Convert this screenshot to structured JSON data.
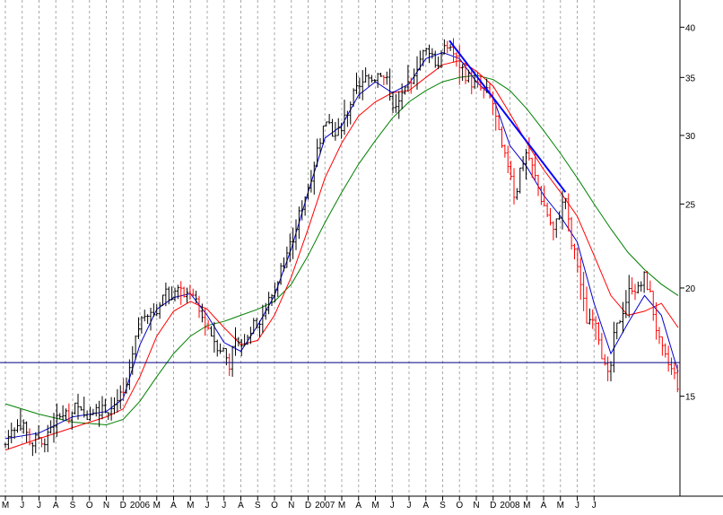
{
  "chart_data": {
    "type": "line",
    "title": "",
    "xlabel": "",
    "ylabel": "",
    "y_scale": "log",
    "ylim": [
      11.5,
      43
    ],
    "y_ticks": [
      15,
      20,
      25,
      30,
      35,
      40
    ],
    "x_tick_labels": [
      "M",
      "J",
      "J",
      "A",
      "S",
      "O",
      "N",
      "D",
      "2006",
      "M",
      "A",
      "M",
      "J",
      "J",
      "A",
      "S",
      "O",
      "N",
      "D",
      "2007",
      "M",
      "A",
      "M",
      "J",
      "J",
      "A",
      "S",
      "O",
      "N",
      "D",
      "2008",
      "M",
      "A",
      "M",
      "J",
      "J"
    ],
    "grid": "vertical dashed at each month",
    "legend": "none",
    "colors": {
      "price_bars": "#000000",
      "down_bars": "#ff0000",
      "ma_short": "#0000cc",
      "ma_medium": "#ff0000",
      "ma_long": "#008000",
      "trendline": "#0000ff",
      "support_line": "#000080"
    },
    "price_path": [
      [
        0,
        13.2
      ],
      [
        0.4,
        13.8
      ],
      [
        0.8,
        14.1
      ],
      [
        1.2,
        13.6
      ],
      [
        1.6,
        13.2
      ],
      [
        2,
        13.5
      ],
      [
        2.3,
        13.0
      ],
      [
        2.6,
        13.9
      ],
      [
        3,
        14.0
      ],
      [
        3.4,
        14.3
      ],
      [
        3.8,
        14.1
      ],
      [
        4.2,
        14.6
      ],
      [
        4.6,
        14.2
      ],
      [
        5,
        14.4
      ],
      [
        5.4,
        14.6
      ],
      [
        5.8,
        14.4
      ],
      [
        6.2,
        14.5
      ],
      [
        6.6,
        14.8
      ],
      [
        7,
        15.0
      ],
      [
        7.3,
        15.6
      ],
      [
        7.6,
        16.8
      ],
      [
        7.8,
        17.6
      ],
      [
        8,
        18.2
      ],
      [
        8.3,
        18.7
      ],
      [
        8.6,
        19.0
      ],
      [
        8.9,
        18.4
      ],
      [
        9.2,
        19.4
      ],
      [
        9.5,
        19.8
      ],
      [
        9.8,
        19.6
      ],
      [
        10.2,
        19.9
      ],
      [
        10.6,
        19.6
      ],
      [
        11,
        19.8
      ],
      [
        11.3,
        19.2
      ],
      [
        11.6,
        18.6
      ],
      [
        12,
        18.1
      ],
      [
        12.3,
        17.6
      ],
      [
        12.6,
        17.2
      ],
      [
        13,
        16.9
      ],
      [
        13.3,
        16.3
      ],
      [
        13.6,
        17.2
      ],
      [
        14,
        17.0
      ],
      [
        14.3,
        17.6
      ],
      [
        14.6,
        17.9
      ],
      [
        15,
        18.3
      ],
      [
        15.3,
        18.6
      ],
      [
        15.6,
        19.2
      ],
      [
        16,
        19.9
      ],
      [
        16.3,
        20.8
      ],
      [
        16.6,
        21.6
      ],
      [
        17,
        22.6
      ],
      [
        17.3,
        23.6
      ],
      [
        17.6,
        24.8
      ],
      [
        18,
        26.2
      ],
      [
        18.3,
        27.6
      ],
      [
        18.6,
        29.2
      ],
      [
        18.9,
        30.6
      ],
      [
        19.2,
        31.8
      ],
      [
        19.5,
        29.5
      ],
      [
        19.8,
        30.2
      ],
      [
        20.2,
        31.5
      ],
      [
        20.6,
        33.0
      ],
      [
        21,
        34.2
      ],
      [
        21.3,
        35.0
      ],
      [
        21.6,
        34.6
      ],
      [
        22,
        35.2
      ],
      [
        22.4,
        35.6
      ],
      [
        22.8,
        34.0
      ],
      [
        23.2,
        32.0
      ],
      [
        23.6,
        33.4
      ],
      [
        24,
        34.6
      ],
      [
        24.4,
        36.0
      ],
      [
        24.8,
        37.2
      ],
      [
        25.2,
        37.8
      ],
      [
        25.6,
        36.5
      ],
      [
        26,
        37.2
      ],
      [
        26.4,
        38.3
      ],
      [
        26.7,
        37.0
      ],
      [
        27,
        36.2
      ],
      [
        27.4,
        35.2
      ],
      [
        27.8,
        34.4
      ],
      [
        28.2,
        34.0
      ],
      [
        28.6,
        33.6
      ],
      [
        29,
        32.6
      ],
      [
        29.3,
        30.2
      ],
      [
        29.6,
        28.4
      ],
      [
        30,
        27.6
      ],
      [
        30.3,
        25.2
      ],
      [
        30.6,
        27.4
      ],
      [
        31,
        28.8
      ],
      [
        31.4,
        27.2
      ],
      [
        31.8,
        25.6
      ],
      [
        32.2,
        24.4
      ],
      [
        32.6,
        23.2
      ],
      [
        33,
        24.6
      ],
      [
        33.3,
        25.4
      ],
      [
        33.6,
        22.6
      ],
      [
        34,
        21.4
      ],
      [
        34.3,
        19.6
      ],
      [
        34.6,
        18.2
      ],
      [
        35,
        18.8
      ],
      [
        35.3,
        17.6
      ],
      [
        35.6,
        16.2
      ],
      [
        35.9,
        15.6
      ],
      [
        36.2,
        17.6
      ],
      [
        36.6,
        18.6
      ],
      [
        37,
        19.6
      ],
      [
        37.3,
        20.2
      ],
      [
        37.6,
        19.8
      ],
      [
        38,
        20.6
      ],
      [
        38.3,
        19.8
      ],
      [
        38.6,
        18.4
      ],
      [
        38.9,
        17.2
      ],
      [
        39.2,
        16.6
      ],
      [
        39.5,
        16.2
      ],
      [
        39.8,
        15.8
      ],
      [
        40,
        15.4
      ]
    ],
    "ma_short": [
      [
        0,
        13.4
      ],
      [
        2,
        13.6
      ],
      [
        4,
        14.2
      ],
      [
        6,
        14.4
      ],
      [
        7,
        14.9
      ],
      [
        8,
        17.2
      ],
      [
        9,
        18.9
      ],
      [
        10,
        19.5
      ],
      [
        11,
        19.7
      ],
      [
        12,
        18.6
      ],
      [
        13,
        17.3
      ],
      [
        14,
        16.9
      ],
      [
        15,
        18.1
      ],
      [
        16,
        19.6
      ],
      [
        17,
        22.2
      ],
      [
        18,
        25.8
      ],
      [
        19,
        29.8
      ],
      [
        20,
        30.8
      ],
      [
        21,
        33.4
      ],
      [
        22,
        34.6
      ],
      [
        23,
        33.6
      ],
      [
        24,
        34.4
      ],
      [
        25,
        36.8
      ],
      [
        26,
        37.4
      ],
      [
        27,
        36.8
      ],
      [
        28,
        34.6
      ],
      [
        29,
        33.2
      ],
      [
        30,
        29.2
      ],
      [
        31,
        27.6
      ],
      [
        32,
        25.6
      ],
      [
        33,
        24.2
      ],
      [
        34,
        22.6
      ],
      [
        35,
        19.2
      ],
      [
        36,
        16.8
      ],
      [
        37,
        18.2
      ],
      [
        38,
        19.6
      ],
      [
        39,
        18.6
      ],
      [
        40,
        16.0
      ]
    ],
    "ma_medium": [
      [
        0,
        13.0
      ],
      [
        2,
        13.4
      ],
      [
        4,
        13.8
      ],
      [
        6,
        14.2
      ],
      [
        7,
        14.5
      ],
      [
        8,
        15.8
      ],
      [
        9,
        17.6
      ],
      [
        10,
        18.8
      ],
      [
        11,
        19.3
      ],
      [
        12,
        18.9
      ],
      [
        13,
        18.0
      ],
      [
        14,
        17.2
      ],
      [
        15,
        17.4
      ],
      [
        16,
        18.6
      ],
      [
        17,
        20.6
      ],
      [
        18,
        23.4
      ],
      [
        19,
        26.8
      ],
      [
        20,
        29.4
      ],
      [
        21,
        31.6
      ],
      [
        22,
        32.8
      ],
      [
        23,
        33.6
      ],
      [
        24,
        33.8
      ],
      [
        25,
        35.0
      ],
      [
        26,
        36.2
      ],
      [
        27,
        36.6
      ],
      [
        28,
        35.6
      ],
      [
        29,
        34.2
      ],
      [
        30,
        31.8
      ],
      [
        31,
        29.4
      ],
      [
        32,
        27.4
      ],
      [
        33,
        25.8
      ],
      [
        34,
        24.2
      ],
      [
        35,
        21.8
      ],
      [
        36,
        19.6
      ],
      [
        37,
        18.6
      ],
      [
        38,
        18.8
      ],
      [
        39,
        19.2
      ],
      [
        40,
        18.0
      ]
    ],
    "ma_long": [
      [
        0,
        14.7
      ],
      [
        2,
        14.3
      ],
      [
        4,
        14.0
      ],
      [
        6,
        13.9
      ],
      [
        7,
        14.1
      ],
      [
        8,
        14.8
      ],
      [
        9,
        15.8
      ],
      [
        10,
        16.8
      ],
      [
        11,
        17.6
      ],
      [
        12,
        18.1
      ],
      [
        13,
        18.3
      ],
      [
        14,
        18.6
      ],
      [
        15,
        18.9
      ],
      [
        16,
        19.3
      ],
      [
        17,
        20.2
      ],
      [
        18,
        21.8
      ],
      [
        19,
        23.8
      ],
      [
        20,
        25.8
      ],
      [
        21,
        27.8
      ],
      [
        22,
        29.6
      ],
      [
        23,
        31.4
      ],
      [
        24,
        32.8
      ],
      [
        25,
        33.8
      ],
      [
        26,
        34.6
      ],
      [
        27,
        35.0
      ],
      [
        28,
        35.2
      ],
      [
        29,
        34.8
      ],
      [
        30,
        33.8
      ],
      [
        31,
        32.2
      ],
      [
        32,
        30.4
      ],
      [
        33,
        28.6
      ],
      [
        34,
        26.8
      ],
      [
        35,
        25.0
      ],
      [
        36,
        23.4
      ],
      [
        37,
        22.0
      ],
      [
        38,
        21.0
      ],
      [
        39,
        20.2
      ],
      [
        40,
        19.6
      ]
    ],
    "trendline": [
      [
        26.4,
        38.6
      ],
      [
        33.3,
        25.8
      ]
    ],
    "support_level": 16.4
  }
}
